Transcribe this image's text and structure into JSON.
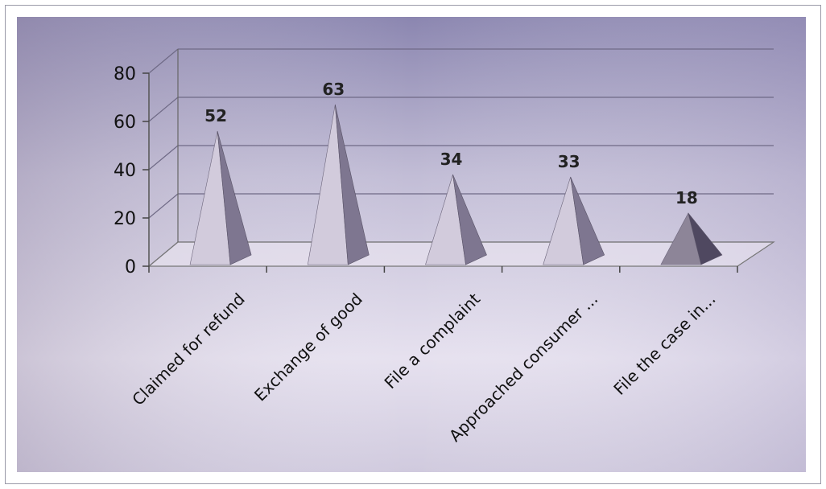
{
  "chart_data": {
    "type": "bar",
    "style": "3d-pyramid",
    "title": "",
    "xlabel": "",
    "ylabel": "",
    "categories": [
      "Claimed for refund",
      "Exchange of good",
      "File a complaint",
      "Approached consumer ...",
      "File the case in..."
    ],
    "values": [
      52,
      63,
      34,
      33,
      18
    ],
    "data_labels": [
      "52",
      "63",
      "34",
      "33",
      "18"
    ],
    "ylim": [
      0,
      80
    ],
    "yticks": [
      "0",
      "20",
      "40",
      "60",
      "80"
    ],
    "grid": true,
    "legend": "none",
    "colors": {
      "pyramid_light": "#d2cbdc",
      "pyramid_dark": "#7e7690",
      "last_light": "#8d8598",
      "last_dark": "#4f4860",
      "background_top": "#8f89b3",
      "background_bottom": "#ece7f4"
    }
  }
}
